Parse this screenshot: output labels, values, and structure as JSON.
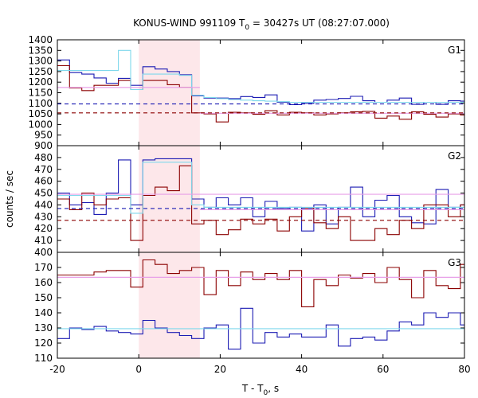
{
  "figure": {
    "title_main": "KONUS-WIND 991109 T",
    "title_sub": "0",
    "title_rest": " = 30427s UT (08:27:07.000)",
    "ylabel": "counts / sec",
    "xlabel_main": "T - T",
    "xlabel_sub": "0",
    "xlabel_rest": ", s"
  },
  "chart_data": {
    "type": "line",
    "step": true,
    "xlim": [
      -20,
      80
    ],
    "xticks": [
      -20,
      0,
      20,
      40,
      60,
      80
    ],
    "shaded_interval": [
      0,
      15
    ],
    "colors": {
      "blue": "#1b1bb3",
      "red": "#8b0000",
      "cyan": "#7fd8ec",
      "violet": "#e8a0e8",
      "shade": "#fde7ea"
    },
    "panels": [
      {
        "label": "G1",
        "ylim": [
          900,
          1400
        ],
        "yticks": [
          900,
          950,
          1000,
          1050,
          1100,
          1150,
          1200,
          1250,
          1300,
          1350,
          1400
        ],
        "series": [
          {
            "color": "blue",
            "kind": "step",
            "x0": -20,
            "dt": 3.0,
            "values": [
              1305,
              1245,
              1238,
              1220,
              1195,
              1218,
              1185,
              1273,
              1262,
              1250,
              1235,
              1135,
              1125,
              1125,
              1122,
              1132,
              1128,
              1140,
              1105,
              1094,
              1100,
              1115,
              1118,
              1123,
              1133,
              1112,
              1105,
              1115,
              1125,
              1095,
              1105,
              1095,
              1112,
              1110
            ]
          },
          {
            "color": "red",
            "kind": "step",
            "x0": -20,
            "dt": 3.0,
            "values": [
              1278,
              1172,
              1160,
              1185,
              1185,
              1208,
              1165,
              1208,
              1208,
              1188,
              1175,
              1055,
              1050,
              1012,
              1058,
              1055,
              1048,
              1065,
              1045,
              1058,
              1055,
              1045,
              1050,
              1055,
              1060,
              1062,
              1030,
              1040,
              1025,
              1060,
              1048,
              1035,
              1050,
              1045
            ]
          },
          {
            "color": "cyan",
            "kind": "step",
            "x0": -20,
            "dt": 3.0,
            "values": [
              1255,
              1255,
              1255,
              1255,
              1255,
              1350,
              1165,
              1238,
              1238,
              1238,
              1232,
              1138,
              1128,
              1122,
              1118,
              1115,
              1112,
              1110,
              1108,
              1105,
              1105,
              1105,
              1105,
              1105,
              1105,
              1105,
              1105,
              1105,
              1105,
              1105,
              1105,
              1105,
              1105,
              1105
            ]
          },
          {
            "color": "violet",
            "kind": "hline",
            "x": [
              -20,
              15
            ],
            "y": 1175
          },
          {
            "color": "violet",
            "kind": "hline",
            "x": [
              15,
              80
            ],
            "y": 1053
          },
          {
            "color": "blue",
            "kind": "dashed",
            "y": 1097
          },
          {
            "color": "red",
            "kind": "dashed",
            "y": 1055
          }
        ]
      },
      {
        "label": "G2",
        "ylim": [
          400,
          490
        ],
        "yticks": [
          400,
          410,
          420,
          430,
          440,
          450,
          460,
          470,
          480
        ],
        "series": [
          {
            "color": "blue",
            "kind": "step",
            "x0": -20,
            "dt": 3.0,
            "values": [
              450,
              440,
              442,
              432,
              450,
              478,
              440,
              478,
              479,
              479,
              479,
              445,
              438,
              446,
              440,
              446,
              430,
              443,
              437,
              438,
              418,
              440,
              424,
              438,
              455,
              430,
              444,
              448,
              430,
              425,
              424,
              453,
              438,
              440
            ]
          },
          {
            "color": "red",
            "kind": "step",
            "x0": -20,
            "dt": 3.0,
            "values": [
              445,
              436,
              450,
              440,
              445,
              446,
              410,
              448,
              455,
              452,
              473,
              424,
              427,
              415,
              419,
              428,
              424,
              428,
              418,
              430,
              437,
              425,
              420,
              430,
              410,
              410,
              420,
              415,
              427,
              420,
              440,
              440,
              430,
              440
            ]
          },
          {
            "color": "cyan",
            "kind": "step",
            "x0": -20,
            "dt": 3.0,
            "values": [
              448,
              448,
              448,
              448,
              448,
              448,
              433,
              476,
              476,
              476,
              476,
              440,
              438,
              438,
              438,
              438,
              438,
              438,
              438,
              438,
              438,
              438,
              438,
              438,
              438,
              438,
              438,
              438,
              438,
              438,
              438,
              438,
              438,
              438
            ]
          },
          {
            "color": "violet",
            "kind": "hline",
            "x": [
              -20,
              80
            ],
            "y": 449
          },
          {
            "color": "violet",
            "kind": "hline",
            "x": [
              15,
              80
            ],
            "y": 436
          },
          {
            "color": "blue",
            "kind": "dashed",
            "y": 437
          },
          {
            "color": "red",
            "kind": "dashed",
            "y": 427
          }
        ]
      },
      {
        "label": "G3",
        "ylim": [
          110,
          180
        ],
        "yticks": [
          110,
          120,
          130,
          140,
          150,
          160,
          170
        ],
        "series": [
          {
            "color": "red",
            "kind": "step",
            "x0": -20,
            "dt": 3.0,
            "values": [
              165,
              165,
              165,
              167,
              168,
              168,
              157,
              175,
              172,
              166,
              168,
              170,
              152,
              168,
              158,
              167,
              162,
              166,
              162,
              168,
              144,
              162,
              158,
              165,
              163,
              166,
              160,
              170,
              162,
              150,
              168,
              158,
              156,
              172
            ]
          },
          {
            "color": "blue",
            "kind": "step",
            "x0": -20,
            "dt": 3.0,
            "values": [
              123,
              130,
              129,
              131,
              128,
              127,
              126,
              135,
              130,
              127,
              125,
              123,
              130,
              132,
              116,
              143,
              120,
              127,
              124,
              126,
              124,
              124,
              132,
              118,
              123,
              124,
              122,
              128,
              134,
              132,
              140,
              137,
              140,
              132
            ]
          },
          {
            "color": "violet",
            "kind": "hline",
            "x": [
              -20,
              80
            ],
            "y": 163.5
          },
          {
            "color": "cyan",
            "kind": "hline",
            "x": [
              -20,
              80
            ],
            "y": 129.5
          }
        ]
      }
    ]
  }
}
